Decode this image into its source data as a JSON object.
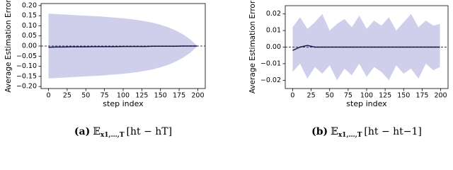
{
  "chart_data": [
    {
      "type": "band-line",
      "ylabel": "Average Estimation Error",
      "xlabel": "step index",
      "caption": {
        "label": "(a)",
        "operator": "𝔼",
        "subscript": "x1,…,T",
        "body": "[ht − hT]"
      },
      "x": [
        0,
        10,
        20,
        30,
        40,
        50,
        60,
        70,
        80,
        90,
        100,
        110,
        120,
        130,
        140,
        150,
        160,
        170,
        180,
        190,
        199
      ],
      "values": [
        -0.006,
        -0.005,
        -0.005,
        -0.004,
        -0.004,
        -0.004,
        -0.003,
        -0.003,
        -0.003,
        -0.003,
        -0.002,
        -0.002,
        -0.002,
        -0.002,
        -0.001,
        -0.001,
        -0.001,
        -0.001,
        0,
        0,
        0
      ],
      "band_upper": [
        0.16,
        0.158,
        0.156,
        0.154,
        0.152,
        0.15,
        0.148,
        0.146,
        0.143,
        0.14,
        0.137,
        0.133,
        0.128,
        0.122,
        0.115,
        0.105,
        0.093,
        0.078,
        0.058,
        0.033,
        0.002
      ],
      "band_lower": [
        -0.16,
        -0.158,
        -0.156,
        -0.154,
        -0.152,
        -0.15,
        -0.148,
        -0.146,
        -0.143,
        -0.14,
        -0.137,
        -0.133,
        -0.128,
        -0.122,
        -0.115,
        -0.105,
        -0.093,
        -0.078,
        -0.058,
        -0.033,
        -0.002
      ],
      "color": "#1c1c5a",
      "band_color": "#cfcfec",
      "hline": 0,
      "xlim": [
        -10,
        210
      ],
      "xticks": [
        0,
        25,
        50,
        75,
        100,
        125,
        150,
        175,
        200
      ],
      "ylim": [
        -0.21,
        0.21
      ],
      "yticks": [
        {
          "value": -0.2,
          "label": "−0.20"
        },
        {
          "value": -0.15,
          "label": "−0.15"
        },
        {
          "value": -0.1,
          "label": "−0.10"
        },
        {
          "value": -0.05,
          "label": "−0.05"
        },
        {
          "value": 0,
          "label": "0.00"
        },
        {
          "value": 0.05,
          "label": "0.05"
        },
        {
          "value": 0.1,
          "label": "0.10"
        },
        {
          "value": 0.15,
          "label": "0.15"
        },
        {
          "value": 0.2,
          "label": "0.20"
        }
      ]
    },
    {
      "type": "band-line",
      "ylabel": "Average Estimation Error",
      "xlabel": "step index",
      "caption": {
        "label": "(b)",
        "operator": "𝔼",
        "subscript": "x1,…,T",
        "body": "[ht − ht−1]"
      },
      "x": [
        0,
        10,
        20,
        30,
        40,
        50,
        60,
        70,
        80,
        90,
        100,
        110,
        120,
        130,
        140,
        150,
        160,
        170,
        180,
        190,
        199
      ],
      "values": [
        -0.002,
        0,
        0.001,
        0,
        0,
        0,
        0,
        0,
        0,
        0,
        0,
        0,
        0,
        0,
        0,
        0,
        0,
        0,
        0,
        0,
        0
      ],
      "band_upper": [
        0.012,
        0.018,
        0.011,
        0.015,
        0.02,
        0.01,
        0.014,
        0.017,
        0.012,
        0.019,
        0.011,
        0.016,
        0.013,
        0.018,
        0.01,
        0.015,
        0.02,
        0.012,
        0.016,
        0.013,
        0.014
      ],
      "band_lower": [
        -0.015,
        -0.01,
        -0.019,
        -0.012,
        -0.016,
        -0.011,
        -0.02,
        -0.013,
        -0.017,
        -0.01,
        -0.018,
        -0.012,
        -0.015,
        -0.02,
        -0.011,
        -0.016,
        -0.013,
        -0.019,
        -0.01,
        -0.014,
        -0.012
      ],
      "color": "#1c1c5a",
      "band_color": "#cfcfec",
      "hline": 0,
      "xlim": [
        -10,
        210
      ],
      "xticks": [
        0,
        25,
        50,
        75,
        100,
        125,
        150,
        175,
        200
      ],
      "ylim": [
        -0.025,
        0.025
      ],
      "yticks": [
        {
          "value": -0.02,
          "label": "−0.02"
        },
        {
          "value": -0.01,
          "label": "−0.01"
        },
        {
          "value": 0,
          "label": "0.00"
        },
        {
          "value": 0.01,
          "label": "0.01"
        },
        {
          "value": 0.02,
          "label": "0.02"
        }
      ]
    }
  ]
}
